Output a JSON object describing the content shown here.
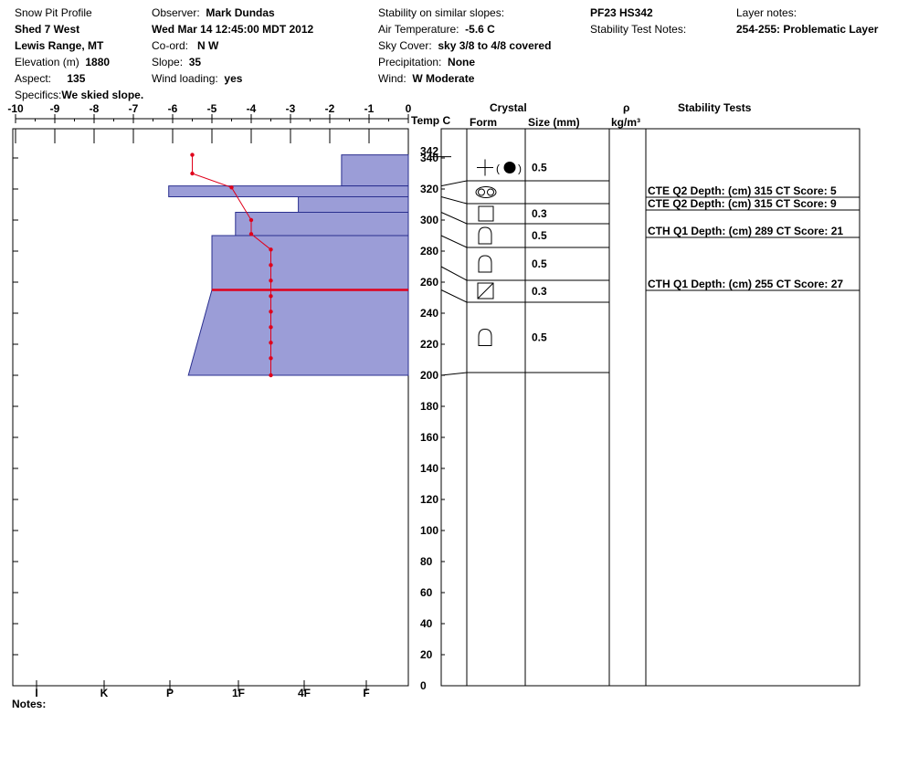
{
  "header": {
    "title": "Snow Pit Profile",
    "location": "Shed 7 West",
    "range": "Lewis Range, MT",
    "elevation": {
      "label": "Elevation (m)",
      "value": "1880"
    },
    "aspect": {
      "label": "Aspect:",
      "value": "135"
    },
    "specifics": {
      "label": "Specifics:",
      "value": "We skied slope."
    },
    "observer": {
      "label": "Observer:",
      "value": "Mark Dundas"
    },
    "date": "Wed Mar 14 12:45:00 MDT 2012",
    "coord": {
      "label": "Co-ord:",
      "value": "N  W"
    },
    "slope": {
      "label": "Slope:",
      "value": "35"
    },
    "wind_loading": {
      "label": "Wind loading:",
      "value": "yes"
    },
    "stability_similar": {
      "label": "Stability on similar slopes:",
      "value": ""
    },
    "air_temp": {
      "label": "Air Temperature:",
      "value": "-5.6 C"
    },
    "sky_cover": {
      "label": "Sky Cover:",
      "value": "sky 3/8 to 4/8 covered"
    },
    "precipitation": {
      "label": "Precipitation:",
      "value": "None"
    },
    "wind": {
      "label": "Wind:",
      "value": "W Moderate"
    },
    "pit_code": "PF23 HS342",
    "stability_test_notes": {
      "label": "Stability Test Notes:",
      "value": ""
    },
    "layer_notes": {
      "label": "Layer notes:",
      "value": "254-255: Problematic Layer"
    }
  },
  "column_headers": {
    "temp": "Temp C",
    "crystal": "Crystal",
    "form": "Form",
    "size": "Size (mm)",
    "rho": "ρ",
    "density_unit": "kg/m³",
    "stability_tests": "Stability Tests"
  },
  "notes_label": "Notes:",
  "chart_data": {
    "type": "snow-pit-profile",
    "temp_axis": {
      "ticks": [
        "-10",
        "-9",
        "-8",
        "-7",
        "-6",
        "-5",
        "-4",
        "-3",
        "-2",
        "-1",
        "0"
      ],
      "range": [
        -10,
        0
      ]
    },
    "hardness_axis": {
      "ticks": [
        "I",
        "K",
        "P",
        "1F",
        "4F",
        "F"
      ]
    },
    "depth_axis": {
      "ticks": [
        0,
        20,
        40,
        60,
        80,
        100,
        120,
        140,
        160,
        180,
        200,
        220,
        240,
        260,
        280,
        300,
        320,
        340
      ],
      "range": [
        0,
        360
      ],
      "hs_label": "342"
    },
    "hardness_layers": [
      {
        "bottom": 322,
        "top": 342,
        "temp_left": -1.7
      },
      {
        "bottom": 315,
        "top": 322,
        "temp_left": -6.1
      },
      {
        "bottom": 305,
        "top": 315,
        "temp_left": -2.8
      },
      {
        "bottom": 290,
        "top": 305,
        "temp_left": -4.4
      },
      {
        "bottom": 255,
        "top": 290,
        "temp_left": -5.0
      },
      {
        "bottom": 200,
        "top": 255,
        "temp_left_top": -5.0,
        "temp_left_bottom": -5.6
      }
    ],
    "problem_layer_depth": 255,
    "temperature_profile": [
      {
        "depth": 342,
        "temp": -5.5
      },
      {
        "depth": 330,
        "temp": -5.5
      },
      {
        "depth": 321,
        "temp": -4.5
      },
      {
        "depth": 300,
        "temp": -4.0
      },
      {
        "depth": 291,
        "temp": -4.0
      },
      {
        "depth": 281,
        "temp": -3.5
      },
      {
        "depth": 271,
        "temp": -3.5
      },
      {
        "depth": 261,
        "temp": -3.5
      },
      {
        "depth": 251,
        "temp": -3.5
      },
      {
        "depth": 241,
        "temp": -3.5
      },
      {
        "depth": 231,
        "temp": -3.5
      },
      {
        "depth": 221,
        "temp": -3.5
      },
      {
        "depth": 211,
        "temp": -3.5
      },
      {
        "depth": 200,
        "temp": -3.5
      }
    ],
    "crystal_layers": [
      {
        "top": 342,
        "bottom": 322,
        "form": "pp-graupel",
        "size": "0.5"
      },
      {
        "top": 322,
        "bottom": 315,
        "form": "rounding",
        "size": ""
      },
      {
        "top": 315,
        "bottom": 305,
        "form": "faceted",
        "size": "0.3"
      },
      {
        "top": 305,
        "bottom": 290,
        "form": "depth-hoar",
        "size": "0.5"
      },
      {
        "top": 290,
        "bottom": 270,
        "form": "depth-hoar",
        "size": "0.5"
      },
      {
        "top": 270,
        "bottom": 255,
        "form": "faceted-rounded",
        "size": "0.3"
      },
      {
        "top": 255,
        "bottom": 200,
        "form": "depth-hoar",
        "size": "0.5"
      }
    ],
    "stability_tests": [
      {
        "text": "CTE Q2 Depth: (cm) 315 CT Score: 5",
        "depth": 315
      },
      {
        "text": "CTE Q2 Depth: (cm) 315 CT Score: 9",
        "depth": 315
      },
      {
        "text": "CTH Q1 Depth: (cm) 289 CT Score: 21",
        "depth": 289
      },
      {
        "text": "CTH Q1 Depth: (cm) 255 CT Score: 27",
        "depth": 255
      }
    ]
  }
}
